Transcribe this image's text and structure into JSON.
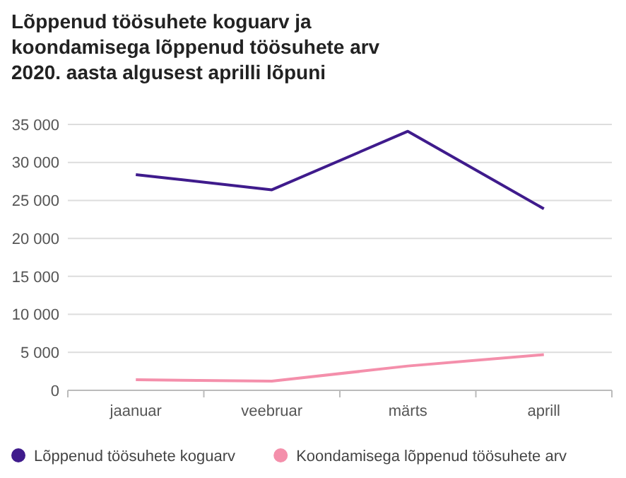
{
  "chart_data": {
    "type": "line",
    "title": "Lõppenud töösuhete koguarv ja koondamisega lõppenud töösuhete arv 2020. aasta algusest aprilli lõpuni",
    "categories": [
      "jaanuar",
      "veebruar",
      "märts",
      "aprill"
    ],
    "series": [
      {
        "name": "Lõppenud töösuhete koguarv",
        "color": "#3f1b8c",
        "values": [
          28400,
          26400,
          34100,
          23900
        ]
      },
      {
        "name": "Koondamisega lõppenud töösuhete arv",
        "color": "#f48fab",
        "values": [
          1400,
          1200,
          3200,
          4700
        ]
      }
    ],
    "ylim": [
      0,
      35000
    ],
    "yticks": [
      {
        "value": 0,
        "label": "0"
      },
      {
        "value": 5000,
        "label": "5 000"
      },
      {
        "value": 10000,
        "label": "10 000"
      },
      {
        "value": 15000,
        "label": "15 000"
      },
      {
        "value": 20000,
        "label": "20 000"
      },
      {
        "value": 25000,
        "label": "25 000"
      },
      {
        "value": 30000,
        "label": "30 000"
      },
      {
        "value": 35000,
        "label": "35 000"
      }
    ],
    "grid": "y",
    "legend": "bottom",
    "marker": "none",
    "line_style": "solid"
  }
}
